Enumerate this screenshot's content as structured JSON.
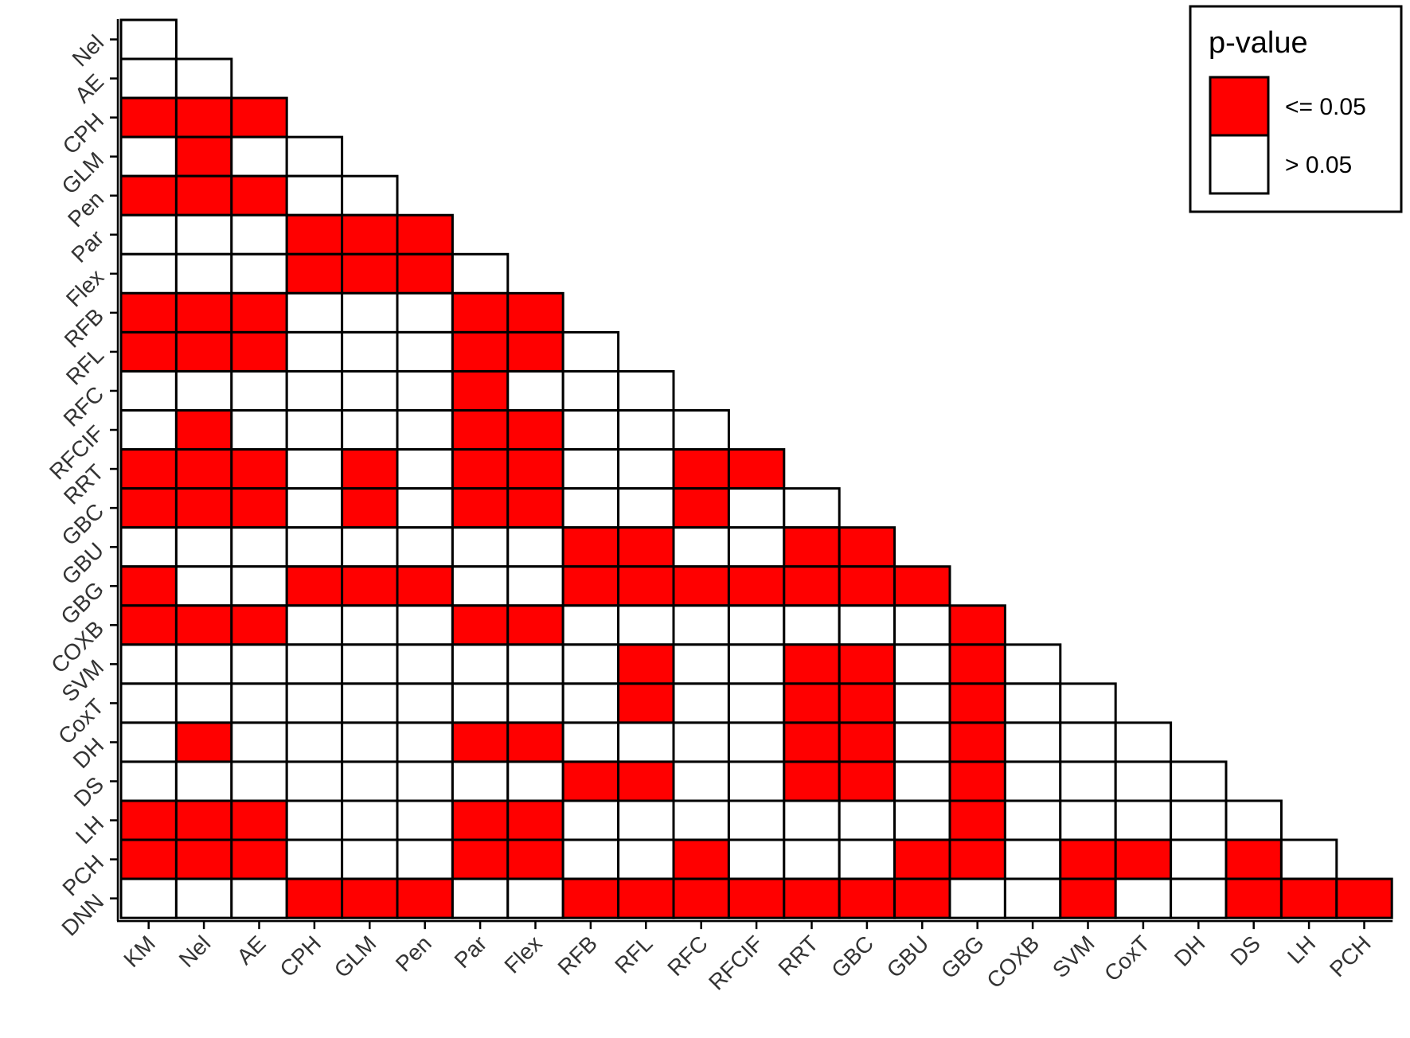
{
  "chart_data": {
    "type": "heatmap",
    "title": "",
    "xlabel": "",
    "ylabel": "",
    "x_labels": [
      "KM",
      "Nel",
      "AE",
      "CPH",
      "GLM",
      "Pen",
      "Par",
      "Flex",
      "RFB",
      "RFL",
      "RFC",
      "RFCIF",
      "RRT",
      "GBC",
      "GBU",
      "GBG",
      "COXB",
      "SVM",
      "CoxT",
      "DH",
      "DS",
      "LH",
      "PCH"
    ],
    "y_labels": [
      "Nel",
      "AE",
      "CPH",
      "GLM",
      "Pen",
      "Par",
      "Flex",
      "RFB",
      "RFL",
      "RFC",
      "RFCIF",
      "RRT",
      "GBC",
      "GBU",
      "GBG",
      "COXB",
      "SVM",
      "CoxT",
      "DH",
      "DS",
      "LH",
      "PCH",
      "DNN"
    ],
    "rows": [
      "0",
      "00",
      "111",
      "0100",
      "11100",
      "000111",
      "0001110",
      "11100011",
      "111000110",
      "0000001000",
      "01000011000",
      "111010110011",
      "1110101100100",
      "00000000110011",
      "100111001111111",
      "1110001100000001",
      "00000000010011010",
      "000000000100110100",
      "0100001100001101000",
      "00000000110011010000",
      "111000110000000100000",
      "1110001100100011011010",
      "00011100111111100100111"
    ],
    "legend": {
      "title": "p-value",
      "placement": "top-right",
      "entries": [
        {
          "label": "<= 0.05",
          "value": 1,
          "color": "#ff0000"
        },
        {
          "label": "> 0.05",
          "value": 0,
          "color": "#ffffff"
        }
      ]
    },
    "colors": {
      "significant": "#ff0000",
      "not_significant": "#ffffff",
      "border": "#000000"
    }
  }
}
